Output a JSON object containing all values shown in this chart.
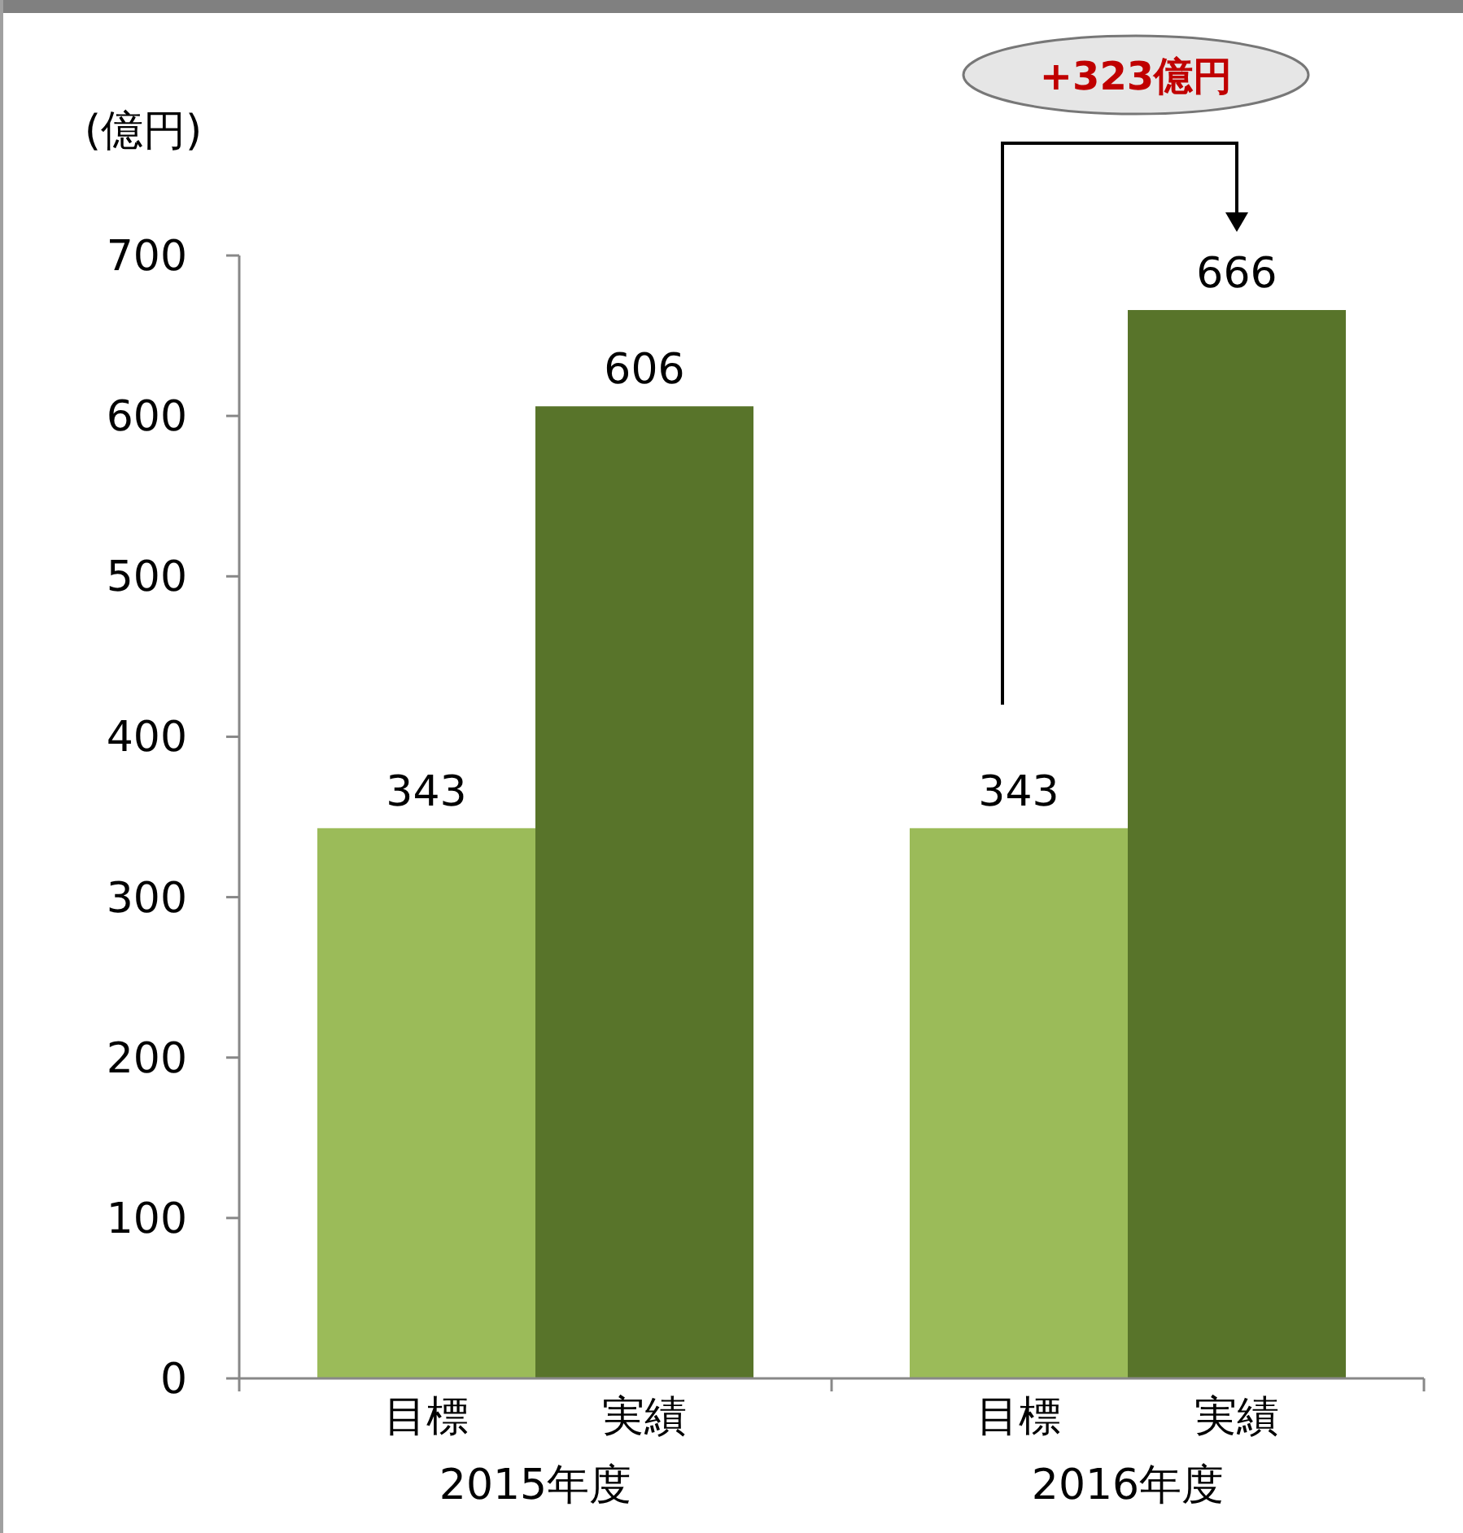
{
  "chart_data": {
    "type": "bar",
    "ylabel": "(億円)",
    "categories": [
      "2015年度",
      "2016年度"
    ],
    "series": [
      {
        "name": "目標",
        "color": "#9bbb59",
        "values": [
          343,
          343
        ]
      },
      {
        "name": "実績",
        "color": "#58742a",
        "values": [
          606,
          666
        ]
      }
    ],
    "ylim": [
      0,
      700
    ],
    "yticks": [
      0,
      100,
      200,
      300,
      400,
      500,
      600,
      700
    ],
    "grid": false,
    "data_labels": true,
    "annotations": [
      "+323億円"
    ]
  }
}
